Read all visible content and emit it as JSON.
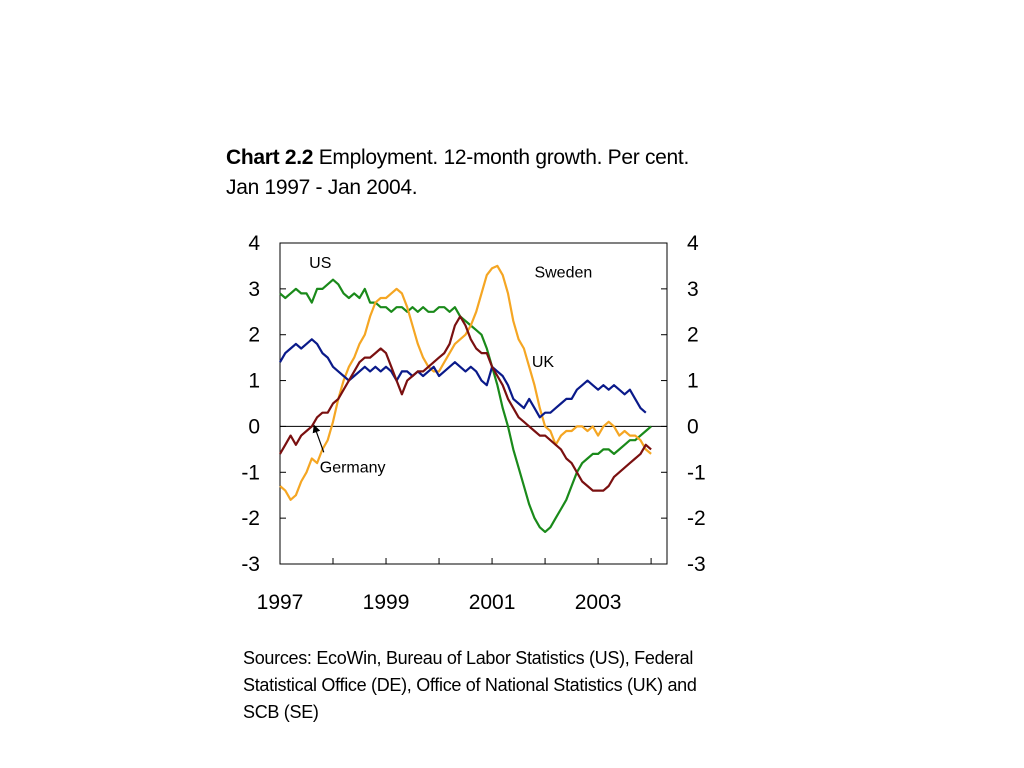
{
  "title": {
    "prefix": "Chart 2.2",
    "text": "Employment. 12-month growth. Per cent.",
    "line2": "Jan 1997 - Jan 2004."
  },
  "sources": "Sources: EcoWin, Bureau of Labor Statistics (US), Federal Statistical Office (DE), Office of National Statistics (UK) and SCB (SE)",
  "chart_data": {
    "type": "line",
    "title": "Chart 2.2 Employment. 12-month growth. Per cent. Jan 1997 - Jan 2004.",
    "xlabel": "",
    "ylabel": "",
    "xlim": [
      1997,
      2004.3
    ],
    "ylim": [
      -3,
      4
    ],
    "x_ticks": [
      "1997",
      "1999",
      "2001",
      "2003"
    ],
    "y_ticks_left": [
      "4",
      "3",
      "2",
      "1",
      "0",
      "-1",
      "-2",
      "-3"
    ],
    "y_ticks_right": [
      "4",
      "3",
      "2",
      "1",
      "0",
      "-1",
      "-2",
      "-3"
    ],
    "grid": false,
    "zero_line": true,
    "series": [
      {
        "name": "US",
        "color": "#1a8a1a",
        "points": [
          [
            1997.0,
            2.9
          ],
          [
            1997.1,
            2.8
          ],
          [
            1997.2,
            2.9
          ],
          [
            1997.3,
            3.0
          ],
          [
            1997.4,
            2.9
          ],
          [
            1997.5,
            2.9
          ],
          [
            1997.6,
            2.7
          ],
          [
            1997.7,
            3.0
          ],
          [
            1997.8,
            3.0
          ],
          [
            1997.9,
            3.1
          ],
          [
            1998.0,
            3.2
          ],
          [
            1998.1,
            3.1
          ],
          [
            1998.2,
            2.9
          ],
          [
            1998.3,
            2.8
          ],
          [
            1998.4,
            2.9
          ],
          [
            1998.5,
            2.8
          ],
          [
            1998.6,
            3.0
          ],
          [
            1998.7,
            2.7
          ],
          [
            1998.8,
            2.7
          ],
          [
            1998.9,
            2.6
          ],
          [
            1999.0,
            2.6
          ],
          [
            1999.1,
            2.5
          ],
          [
            1999.2,
            2.6
          ],
          [
            1999.3,
            2.6
          ],
          [
            1999.4,
            2.5
          ],
          [
            1999.5,
            2.6
          ],
          [
            1999.6,
            2.5
          ],
          [
            1999.7,
            2.6
          ],
          [
            1999.8,
            2.5
          ],
          [
            1999.9,
            2.5
          ],
          [
            2000.0,
            2.6
          ],
          [
            2000.1,
            2.6
          ],
          [
            2000.2,
            2.5
          ],
          [
            2000.3,
            2.6
          ],
          [
            2000.4,
            2.4
          ],
          [
            2000.5,
            2.3
          ],
          [
            2000.6,
            2.2
          ],
          [
            2000.7,
            2.1
          ],
          [
            2000.8,
            2.0
          ],
          [
            2000.9,
            1.7
          ],
          [
            2001.0,
            1.3
          ],
          [
            2001.1,
            0.9
          ],
          [
            2001.2,
            0.4
          ],
          [
            2001.3,
            0.0
          ],
          [
            2001.4,
            -0.5
          ],
          [
            2001.5,
            -0.9
          ],
          [
            2001.6,
            -1.3
          ],
          [
            2001.7,
            -1.7
          ],
          [
            2001.8,
            -2.0
          ],
          [
            2001.9,
            -2.2
          ],
          [
            2002.0,
            -2.3
          ],
          [
            2002.1,
            -2.2
          ],
          [
            2002.2,
            -2.0
          ],
          [
            2002.3,
            -1.8
          ],
          [
            2002.4,
            -1.6
          ],
          [
            2002.5,
            -1.3
          ],
          [
            2002.6,
            -1.0
          ],
          [
            2002.7,
            -0.8
          ],
          [
            2002.8,
            -0.7
          ],
          [
            2002.9,
            -0.6
          ],
          [
            2003.0,
            -0.6
          ],
          [
            2003.1,
            -0.5
          ],
          [
            2003.2,
            -0.5
          ],
          [
            2003.3,
            -0.6
          ],
          [
            2003.4,
            -0.5
          ],
          [
            2003.5,
            -0.4
          ],
          [
            2003.6,
            -0.3
          ],
          [
            2003.7,
            -0.3
          ],
          [
            2003.8,
            -0.2
          ],
          [
            2003.9,
            -0.1
          ],
          [
            2004.0,
            0.0
          ]
        ]
      },
      {
        "name": "Sweden",
        "color": "#f5a623",
        "points": [
          [
            1997.0,
            -1.3
          ],
          [
            1997.1,
            -1.4
          ],
          [
            1997.2,
            -1.6
          ],
          [
            1997.3,
            -1.5
          ],
          [
            1997.4,
            -1.2
          ],
          [
            1997.5,
            -1.0
          ],
          [
            1997.6,
            -0.7
          ],
          [
            1997.7,
            -0.8
          ],
          [
            1997.8,
            -0.5
          ],
          [
            1997.9,
            -0.3
          ],
          [
            1998.0,
            0.1
          ],
          [
            1998.1,
            0.6
          ],
          [
            1998.2,
            1.0
          ],
          [
            1998.3,
            1.3
          ],
          [
            1998.4,
            1.5
          ],
          [
            1998.5,
            1.8
          ],
          [
            1998.6,
            2.0
          ],
          [
            1998.7,
            2.4
          ],
          [
            1998.8,
            2.7
          ],
          [
            1998.9,
            2.8
          ],
          [
            1999.0,
            2.8
          ],
          [
            1999.1,
            2.9
          ],
          [
            1999.2,
            3.0
          ],
          [
            1999.3,
            2.9
          ],
          [
            1999.4,
            2.6
          ],
          [
            1999.5,
            2.2
          ],
          [
            1999.6,
            1.8
          ],
          [
            1999.7,
            1.5
          ],
          [
            1999.8,
            1.3
          ],
          [
            1999.9,
            1.2
          ],
          [
            2000.0,
            1.2
          ],
          [
            2000.1,
            1.4
          ],
          [
            2000.2,
            1.6
          ],
          [
            2000.3,
            1.8
          ],
          [
            2000.4,
            1.9
          ],
          [
            2000.5,
            2.0
          ],
          [
            2000.6,
            2.2
          ],
          [
            2000.7,
            2.5
          ],
          [
            2000.8,
            2.9
          ],
          [
            2000.9,
            3.3
          ],
          [
            2001.0,
            3.45
          ],
          [
            2001.1,
            3.5
          ],
          [
            2001.2,
            3.3
          ],
          [
            2001.3,
            2.9
          ],
          [
            2001.4,
            2.3
          ],
          [
            2001.5,
            1.9
          ],
          [
            2001.6,
            1.7
          ],
          [
            2001.7,
            1.3
          ],
          [
            2001.8,
            0.9
          ],
          [
            2001.9,
            0.4
          ],
          [
            2002.0,
            0.0
          ],
          [
            2002.1,
            -0.1
          ],
          [
            2002.2,
            -0.4
          ],
          [
            2002.3,
            -0.2
          ],
          [
            2002.4,
            -0.1
          ],
          [
            2002.5,
            -0.1
          ],
          [
            2002.6,
            0.0
          ],
          [
            2002.7,
            0.0
          ],
          [
            2002.8,
            -0.1
          ],
          [
            2002.9,
            0.0
          ],
          [
            2003.0,
            -0.2
          ],
          [
            2003.1,
            0.0
          ],
          [
            2003.2,
            0.1
          ],
          [
            2003.3,
            0.0
          ],
          [
            2003.4,
            -0.2
          ],
          [
            2003.5,
            -0.1
          ],
          [
            2003.6,
            -0.2
          ],
          [
            2003.7,
            -0.2
          ],
          [
            2003.8,
            -0.3
          ],
          [
            2003.9,
            -0.5
          ],
          [
            2004.0,
            -0.6
          ]
        ]
      },
      {
        "name": "UK",
        "color": "#0a1a8a",
        "points": [
          [
            1997.0,
            1.4
          ],
          [
            1997.1,
            1.6
          ],
          [
            1997.2,
            1.7
          ],
          [
            1997.3,
            1.8
          ],
          [
            1997.4,
            1.7
          ],
          [
            1997.5,
            1.8
          ],
          [
            1997.6,
            1.9
          ],
          [
            1997.7,
            1.8
          ],
          [
            1997.8,
            1.6
          ],
          [
            1997.9,
            1.5
          ],
          [
            1998.0,
            1.3
          ],
          [
            1998.1,
            1.2
          ],
          [
            1998.2,
            1.1
          ],
          [
            1998.3,
            1.0
          ],
          [
            1998.4,
            1.1
          ],
          [
            1998.5,
            1.2
          ],
          [
            1998.6,
            1.3
          ],
          [
            1998.7,
            1.2
          ],
          [
            1998.8,
            1.3
          ],
          [
            1998.9,
            1.2
          ],
          [
            1999.0,
            1.3
          ],
          [
            1999.1,
            1.2
          ],
          [
            1999.2,
            1.0
          ],
          [
            1999.3,
            1.2
          ],
          [
            1999.4,
            1.2
          ],
          [
            1999.5,
            1.1
          ],
          [
            1999.6,
            1.2
          ],
          [
            1999.7,
            1.1
          ],
          [
            1999.8,
            1.2
          ],
          [
            1999.9,
            1.3
          ],
          [
            2000.0,
            1.1
          ],
          [
            2000.1,
            1.2
          ],
          [
            2000.2,
            1.3
          ],
          [
            2000.3,
            1.4
          ],
          [
            2000.4,
            1.3
          ],
          [
            2000.5,
            1.2
          ],
          [
            2000.6,
            1.3
          ],
          [
            2000.7,
            1.2
          ],
          [
            2000.8,
            1.0
          ],
          [
            2000.9,
            0.9
          ],
          [
            2001.0,
            1.3
          ],
          [
            2001.1,
            1.2
          ],
          [
            2001.2,
            1.1
          ],
          [
            2001.3,
            0.9
          ],
          [
            2001.4,
            0.6
          ],
          [
            2001.5,
            0.5
          ],
          [
            2001.6,
            0.4
          ],
          [
            2001.7,
            0.6
          ],
          [
            2001.8,
            0.4
          ],
          [
            2001.9,
            0.2
          ],
          [
            2002.0,
            0.3
          ],
          [
            2002.1,
            0.3
          ],
          [
            2002.2,
            0.4
          ],
          [
            2002.3,
            0.5
          ],
          [
            2002.4,
            0.6
          ],
          [
            2002.5,
            0.6
          ],
          [
            2002.6,
            0.8
          ],
          [
            2002.7,
            0.9
          ],
          [
            2002.8,
            1.0
          ],
          [
            2002.9,
            0.9
          ],
          [
            2003.0,
            0.8
          ],
          [
            2003.1,
            0.9
          ],
          [
            2003.2,
            0.8
          ],
          [
            2003.3,
            0.9
          ],
          [
            2003.4,
            0.8
          ],
          [
            2003.5,
            0.7
          ],
          [
            2003.6,
            0.8
          ],
          [
            2003.7,
            0.6
          ],
          [
            2003.8,
            0.4
          ],
          [
            2003.9,
            0.3
          ]
        ]
      },
      {
        "name": "Germany",
        "color": "#7a1010",
        "points": [
          [
            1997.0,
            -0.6
          ],
          [
            1997.1,
            -0.4
          ],
          [
            1997.2,
            -0.2
          ],
          [
            1997.3,
            -0.4
          ],
          [
            1997.4,
            -0.2
          ],
          [
            1997.5,
            -0.1
          ],
          [
            1997.6,
            0.0
          ],
          [
            1997.7,
            0.2
          ],
          [
            1997.8,
            0.3
          ],
          [
            1997.9,
            0.3
          ],
          [
            1998.0,
            0.5
          ],
          [
            1998.1,
            0.6
          ],
          [
            1998.2,
            0.8
          ],
          [
            1998.3,
            1.0
          ],
          [
            1998.4,
            1.2
          ],
          [
            1998.5,
            1.4
          ],
          [
            1998.6,
            1.5
          ],
          [
            1998.7,
            1.5
          ],
          [
            1998.8,
            1.6
          ],
          [
            1998.9,
            1.7
          ],
          [
            1999.0,
            1.6
          ],
          [
            1999.1,
            1.3
          ],
          [
            1999.2,
            1.0
          ],
          [
            1999.3,
            0.7
          ],
          [
            1999.4,
            1.0
          ],
          [
            1999.5,
            1.1
          ],
          [
            1999.6,
            1.2
          ],
          [
            1999.7,
            1.2
          ],
          [
            1999.8,
            1.3
          ],
          [
            1999.9,
            1.4
          ],
          [
            2000.0,
            1.5
          ],
          [
            2000.1,
            1.6
          ],
          [
            2000.2,
            1.8
          ],
          [
            2000.3,
            2.2
          ],
          [
            2000.4,
            2.4
          ],
          [
            2000.5,
            2.2
          ],
          [
            2000.6,
            1.9
          ],
          [
            2000.7,
            1.7
          ],
          [
            2000.8,
            1.6
          ],
          [
            2000.9,
            1.6
          ],
          [
            2001.0,
            1.3
          ],
          [
            2001.1,
            1.1
          ],
          [
            2001.2,
            0.9
          ],
          [
            2001.3,
            0.6
          ],
          [
            2001.4,
            0.4
          ],
          [
            2001.5,
            0.2
          ],
          [
            2001.6,
            0.1
          ],
          [
            2001.7,
            0.0
          ],
          [
            2001.8,
            -0.1
          ],
          [
            2001.9,
            -0.2
          ],
          [
            2002.0,
            -0.2
          ],
          [
            2002.1,
            -0.3
          ],
          [
            2002.2,
            -0.4
          ],
          [
            2002.3,
            -0.5
          ],
          [
            2002.4,
            -0.7
          ],
          [
            2002.5,
            -0.8
          ],
          [
            2002.6,
            -1.0
          ],
          [
            2002.7,
            -1.2
          ],
          [
            2002.8,
            -1.3
          ],
          [
            2002.9,
            -1.4
          ],
          [
            2003.0,
            -1.4
          ],
          [
            2003.1,
            -1.4
          ],
          [
            2003.2,
            -1.3
          ],
          [
            2003.3,
            -1.1
          ],
          [
            2003.4,
            -1.0
          ],
          [
            2003.5,
            -0.9
          ],
          [
            2003.6,
            -0.8
          ],
          [
            2003.7,
            -0.7
          ],
          [
            2003.8,
            -0.6
          ],
          [
            2003.9,
            -0.4
          ],
          [
            2004.0,
            -0.5
          ]
        ]
      }
    ],
    "annotations": [
      {
        "text": "US",
        "series": "US",
        "at": [
          1997.55,
          3.45
        ]
      },
      {
        "text": "Sweden",
        "series": "Sweden",
        "at": [
          2001.8,
          3.25
        ]
      },
      {
        "text": "UK",
        "series": "UK",
        "at": [
          2001.75,
          1.3
        ]
      },
      {
        "text": "Germany",
        "series": "Germany",
        "at": [
          1997.75,
          -1.0
        ],
        "arrow_to": [
          1997.65,
          0.0
        ]
      }
    ]
  }
}
